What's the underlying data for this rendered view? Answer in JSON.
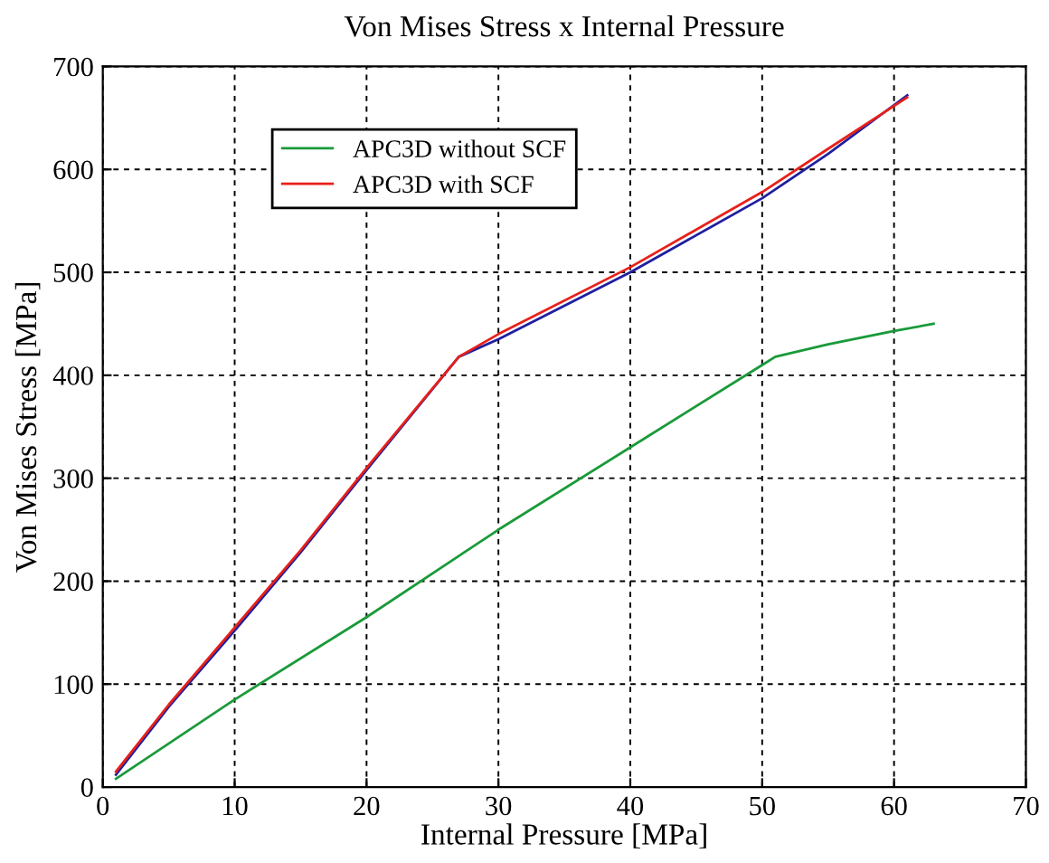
{
  "chart_data": {
    "type": "line",
    "title": "Von Mises Stress x Internal Pressure",
    "xlabel": "Internal Pressure [MPa]",
    "ylabel": "Von Mises Stress [MPa]",
    "xlim": [
      0,
      70
    ],
    "xticks": [
      0,
      10,
      20,
      30,
      40,
      50,
      60,
      70
    ],
    "ylim": [
      0,
      700
    ],
    "yticks": [
      0,
      100,
      200,
      300,
      400,
      500,
      600,
      700
    ],
    "grid": true,
    "legend": "top left",
    "line_style": "solid",
    "marker": "none",
    "series": [
      {
        "color": "#1f1fa0",
        "x": [
          1,
          5,
          10,
          15,
          20,
          27,
          30,
          40,
          50,
          55,
          61
        ],
        "values": [
          12,
          78,
          152,
          228,
          308,
          418,
          435,
          500,
          572,
          615,
          672
        ]
      },
      {
        "name": "APC3D without SCF",
        "color": "#1a9a3a",
        "x": [
          1,
          10,
          20,
          30,
          40,
          50,
          51,
          55,
          60,
          63
        ],
        "values": [
          8,
          85,
          165,
          250,
          330,
          410,
          418,
          430,
          443,
          450
        ]
      },
      {
        "name": "APC3D with SCF",
        "color": "#e8201a",
        "x": [
          1,
          5,
          10,
          15,
          20,
          27,
          30,
          40,
          50,
          55,
          61
        ],
        "values": [
          15,
          80,
          155,
          230,
          310,
          418,
          440,
          505,
          578,
          620,
          670
        ]
      }
    ]
  }
}
